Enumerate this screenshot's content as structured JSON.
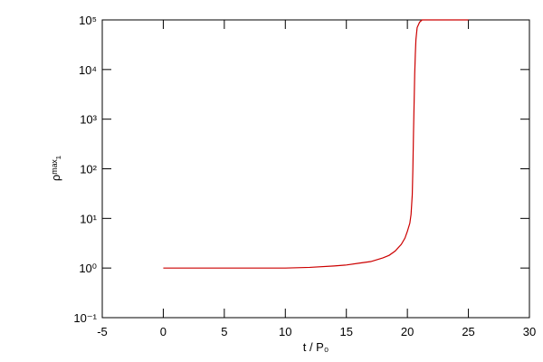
{
  "chart_data": {
    "type": "line",
    "xlabel": "t / P₀",
    "ylabel": "ρᵐᵃˣ₁",
    "log_y": true,
    "xlim": [
      -5,
      30
    ],
    "xticks": [
      -5,
      0,
      5,
      10,
      15,
      20,
      25,
      30
    ],
    "ylim": [
      0.1,
      100000
    ],
    "yticks": [
      {
        "value": 0.1,
        "label": "10⁻¹"
      },
      {
        "value": 1,
        "label": "10⁰"
      },
      {
        "value": 10,
        "label": "10¹"
      },
      {
        "value": 100,
        "label": "10²"
      },
      {
        "value": 1000,
        "label": "10³"
      },
      {
        "value": 10000,
        "label": "10⁴"
      },
      {
        "value": 100000,
        "label": "10⁵"
      }
    ],
    "series": [
      {
        "color": "#cc0000",
        "x": [
          0,
          2,
          4,
          6,
          8,
          10,
          12,
          14,
          15,
          16,
          17,
          18,
          18.5,
          19,
          19.5,
          19.8,
          20,
          20.2,
          20.3,
          20.4,
          20.45,
          20.5,
          20.55,
          20.6,
          20.65,
          20.7,
          20.8,
          21,
          21.2,
          22,
          23,
          24,
          25
        ],
        "values": [
          1,
          1,
          1,
          1,
          1,
          1,
          1.03,
          1.1,
          1.15,
          1.25,
          1.35,
          1.6,
          1.8,
          2.2,
          3,
          4,
          5.5,
          8,
          12,
          30,
          100,
          500,
          2000,
          8000,
          20000,
          40000,
          70000,
          90000,
          100000,
          100000,
          100000,
          100000,
          100000
        ]
      }
    ]
  }
}
